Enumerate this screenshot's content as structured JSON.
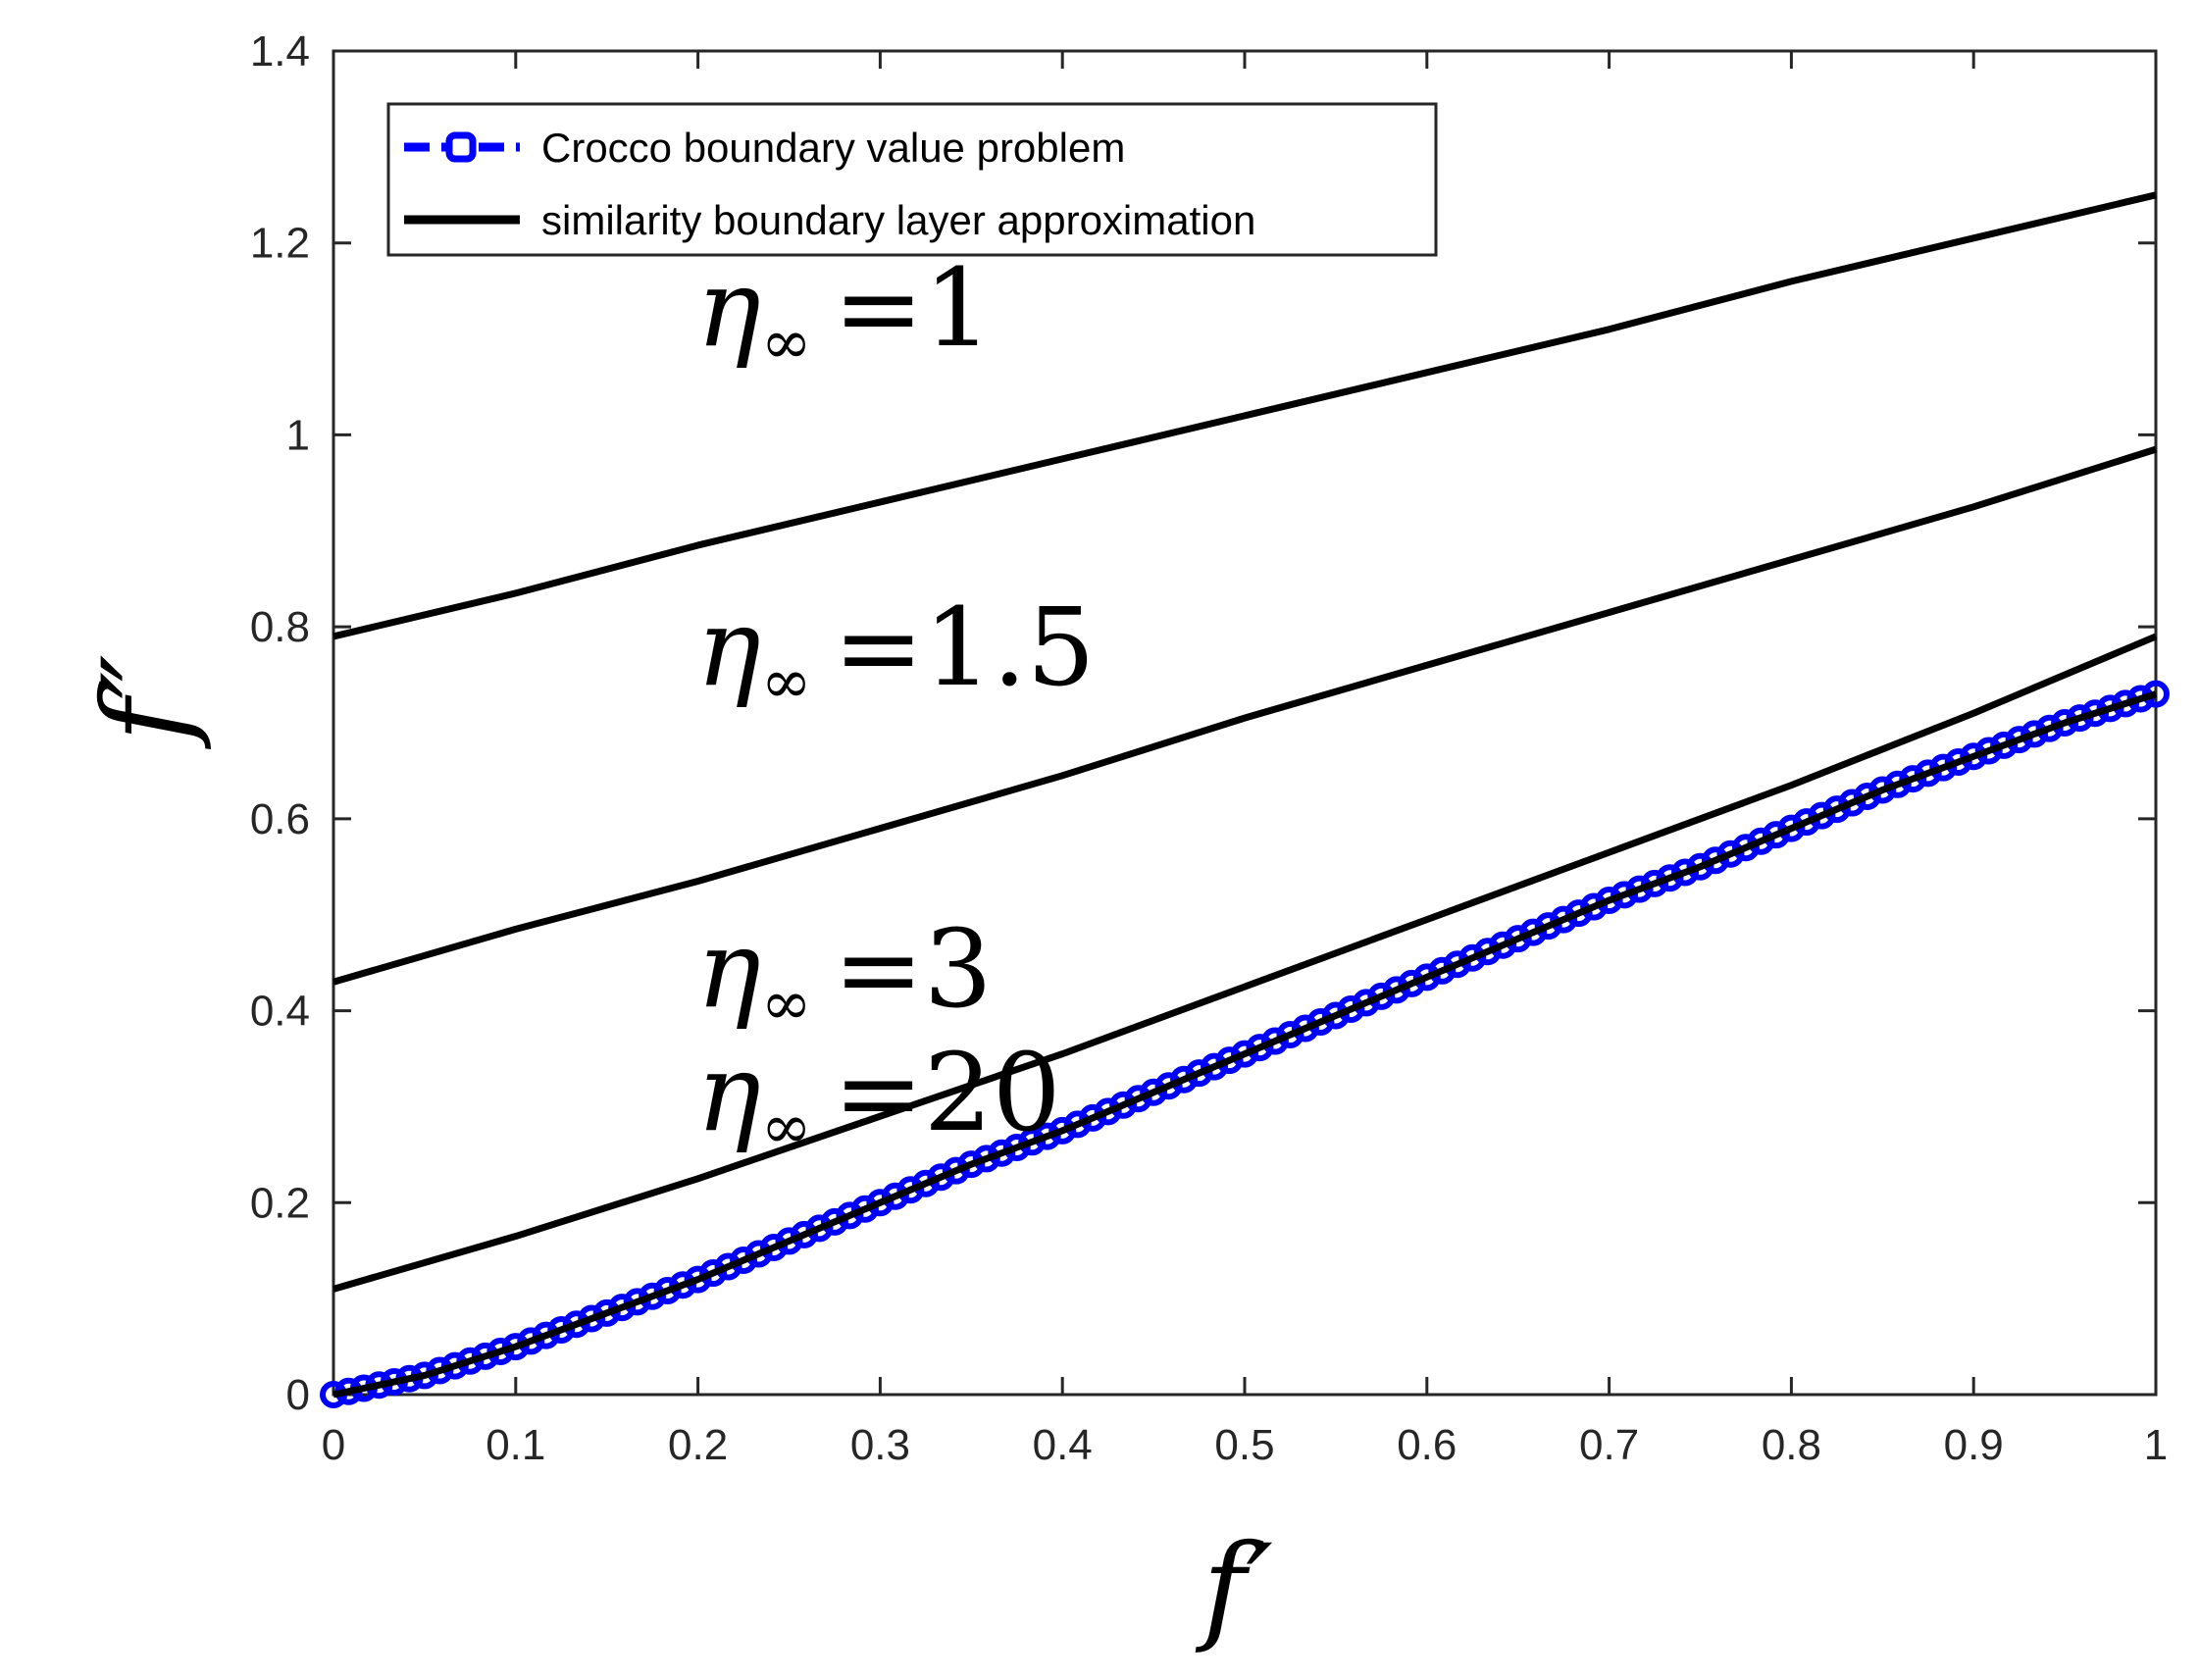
{
  "chart_data": {
    "type": "line",
    "xlabel": "f′",
    "ylabel": "f″",
    "xlim": [
      0,
      1
    ],
    "ylim": [
      0,
      1.4
    ],
    "x_ticks": [
      "0",
      "0.1",
      "0.2",
      "0.3",
      "0.4",
      "0.5",
      "0.6",
      "0.7",
      "0.8",
      "0.9",
      "1"
    ],
    "y_ticks": [
      "0",
      "0.2",
      "0.4",
      "0.6",
      "0.8",
      "1",
      "1.2",
      "1.4"
    ],
    "grid": false,
    "legend_position": "top-left",
    "legend": [
      {
        "label": "Crocco boundary value problem",
        "style": "blue dashed line with circle markers"
      },
      {
        "label": "similarity boundary layer approximation",
        "style": "black solid line"
      }
    ],
    "annotations": [
      {
        "prefix": "η",
        "subscript": "∞",
        "value": "=1"
      },
      {
        "prefix": "η",
        "subscript": "∞",
        "value": "=1.5"
      },
      {
        "prefix": "η",
        "subscript": "∞",
        "value": "=3"
      },
      {
        "prefix": "η",
        "subscript": "∞",
        "value": "=20"
      }
    ],
    "series": [
      {
        "name": "similarity boundary layer approximation",
        "color": "#000000",
        "x": [
          0,
          0.1,
          0.2,
          0.3,
          0.4,
          0.5,
          0.6,
          0.7,
          0.8,
          0.9,
          1.0
        ],
        "y": [
          0.79,
          0.835,
          0.885,
          0.93,
          0.975,
          1.02,
          1.065,
          1.11,
          1.16,
          1.205,
          1.25
        ]
      },
      {
        "name": "similarity boundary layer approximation",
        "color": "#000000",
        "x": [
          0,
          0.1,
          0.2,
          0.3,
          0.4,
          0.5,
          0.6,
          0.7,
          0.8,
          0.9,
          1.0
        ],
        "y": [
          0.43,
          0.485,
          0.535,
          0.59,
          0.645,
          0.705,
          0.76,
          0.815,
          0.87,
          0.925,
          0.985
        ]
      },
      {
        "name": "similarity boundary layer approximation",
        "color": "#000000",
        "x": [
          0,
          0.1,
          0.2,
          0.3,
          0.4,
          0.5,
          0.6,
          0.7,
          0.8,
          0.9,
          1.0
        ],
        "y": [
          0.11,
          0.165,
          0.225,
          0.29,
          0.355,
          0.425,
          0.495,
          0.565,
          0.635,
          0.71,
          0.79
        ]
      },
      {
        "name": "similarity boundary layer approximation",
        "color": "#000000",
        "x": [
          0,
          0.05,
          0.1,
          0.15,
          0.2,
          0.25,
          0.3,
          0.35,
          0.4,
          0.45,
          0.5,
          0.55,
          0.6,
          0.65,
          0.7,
          0.75,
          0.8,
          0.85,
          0.9,
          0.95,
          1.0
        ],
        "y": [
          0,
          0.02,
          0.05,
          0.085,
          0.12,
          0.16,
          0.2,
          0.24,
          0.275,
          0.315,
          0.355,
          0.395,
          0.435,
          0.475,
          0.515,
          0.55,
          0.59,
          0.63,
          0.665,
          0.7,
          0.73
        ]
      },
      {
        "name": "Crocco boundary value problem",
        "color": "#0000ff",
        "x": [
          0,
          0.05,
          0.1,
          0.15,
          0.2,
          0.25,
          0.3,
          0.35,
          0.4,
          0.45,
          0.5,
          0.55,
          0.6,
          0.65,
          0.7,
          0.75,
          0.8,
          0.85,
          0.9,
          0.95,
          1.0
        ],
        "y": [
          0,
          0.02,
          0.05,
          0.085,
          0.12,
          0.16,
          0.2,
          0.24,
          0.275,
          0.315,
          0.355,
          0.395,
          0.435,
          0.475,
          0.515,
          0.55,
          0.59,
          0.63,
          0.665,
          0.7,
          0.73
        ]
      }
    ]
  }
}
